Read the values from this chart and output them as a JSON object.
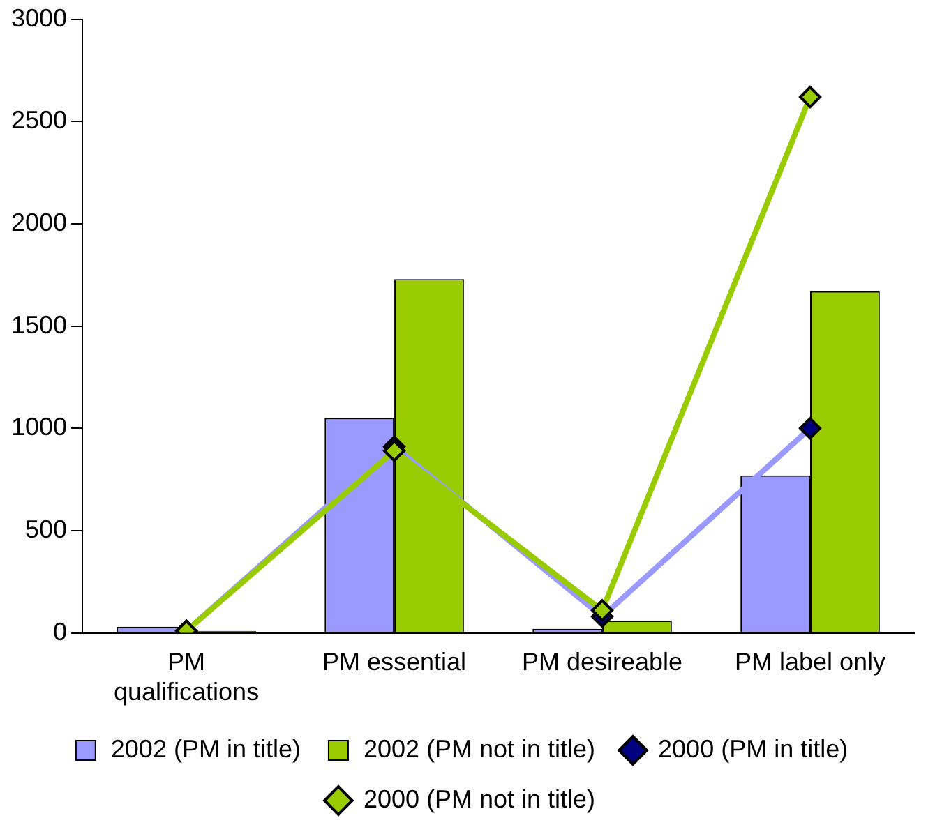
{
  "chart_data": {
    "type": "bar",
    "categories": [
      "PM qualifications",
      "PM essential",
      "PM desireable",
      "PM label only"
    ],
    "series": [
      {
        "name": "2002 (PM in title)",
        "color": "#9999ff",
        "values": [
          30,
          1050,
          20,
          770
        ]
      },
      {
        "name": "2002 (PM not in title)",
        "color": "#99cc00",
        "values": [
          10,
          1730,
          60,
          1670
        ]
      },
      {
        "name": "2000 (PM in title)",
        "type": "line",
        "marker": "diamond",
        "color": "#9999ff",
        "colors": [
          "#000080",
          "#000080",
          "#000080",
          "#000080"
        ],
        "values": [
          10,
          910,
          80,
          1000
        ]
      },
      {
        "name": "2000 (PM not in title)",
        "type": "line",
        "marker": "diamond",
        "color": "#99cc00",
        "values": [
          10,
          890,
          110,
          2620
        ]
      }
    ],
    "ylim": [
      0,
      3000
    ],
    "yticks": [
      0,
      500,
      1000,
      1500,
      2000,
      2500,
      3000
    ],
    "grid": false,
    "legend": "bottom"
  }
}
